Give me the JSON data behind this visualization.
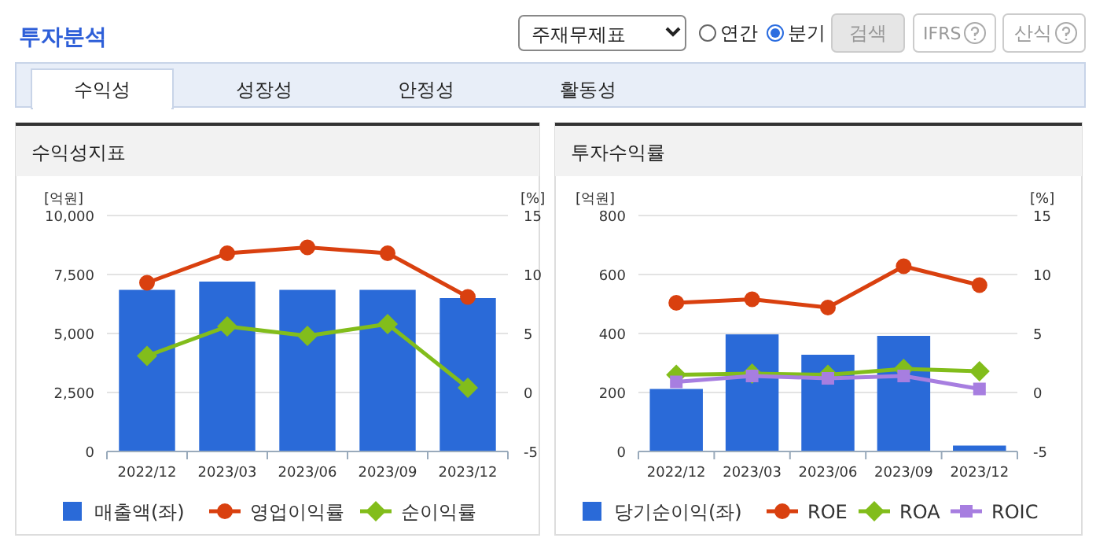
{
  "chart_data": [
    {
      "type": "other",
      "title": "투자분석",
      "annotations": [
        "주재무제표",
        "연간",
        "분기",
        "검색",
        "IFRS",
        "산식",
        "수익성",
        "성장성",
        "안정성",
        "활동성"
      ]
    },
    {
      "type": "bar",
      "title": "수익성지표",
      "categories": [
        "2022/12",
        "2023/03",
        "2023/06",
        "2023/09",
        "2023/12"
      ],
      "ylabel": "[억원]",
      "y2label": "[%]",
      "ylim": [
        0,
        10000
      ],
      "yticks": [
        0,
        {
          "value": 2500,
          "label": "2,500"
        },
        {
          "value": 5000,
          "label": "5,000"
        },
        {
          "value": 7500,
          "label": "7,500"
        },
        {
          "value": 10000,
          "label": "10,000"
        }
      ],
      "y2lim": [
        -5,
        15
      ],
      "y2ticks": [
        -5,
        0,
        5,
        10,
        15
      ],
      "grid": "y",
      "legend": "bottom",
      "series": [
        {
          "name": "매출액(좌)",
          "type": "bar",
          "color": "#2a6ad8",
          "values": [
            6850,
            7200,
            6850,
            6850,
            6500
          ]
        },
        {
          "name": "영업이익률",
          "type": "line",
          "axis": "y2",
          "marker": "circle",
          "color": "#d9400f",
          "values": [
            9.3,
            11.8,
            12.3,
            11.8,
            8.1
          ]
        },
        {
          "name": "순이익률",
          "type": "line",
          "axis": "y2",
          "marker": "diamond",
          "color": "#82bd1b",
          "values": [
            3.1,
            5.6,
            4.8,
            5.8,
            0.4
          ]
        }
      ]
    },
    {
      "type": "bar",
      "title": "투자수익률",
      "categories": [
        "2022/12",
        "2023/03",
        "2023/06",
        "2023/09",
        "2023/12"
      ],
      "ylabel": "[억원]",
      "y2label": "[%]",
      "ylim": [
        0,
        800
      ],
      "yticks": [
        0,
        200,
        400,
        600,
        800
      ],
      "y2lim": [
        -5,
        15
      ],
      "y2ticks": [
        -5,
        0,
        5,
        10,
        15
      ],
      "grid": "y",
      "legend": "bottom",
      "series": [
        {
          "name": "당기순이익(좌)",
          "type": "bar",
          "color": "#2a6ad8",
          "values": [
            212,
            397,
            328,
            392,
            20
          ]
        },
        {
          "name": "ROE",
          "type": "line",
          "axis": "y2",
          "marker": "circle",
          "color": "#d9400f",
          "values": [
            7.6,
            7.9,
            7.2,
            10.7,
            9.1
          ]
        },
        {
          "name": "ROA",
          "type": "line",
          "axis": "y2",
          "marker": "diamond",
          "color": "#82bd1b",
          "values": [
            1.5,
            1.6,
            1.5,
            2.0,
            1.8
          ]
        },
        {
          "name": "ROIC",
          "type": "line",
          "axis": "y2",
          "marker": "square",
          "color": "#a77ee0",
          "values": [
            0.9,
            1.4,
            1.2,
            1.4,
            0.3
          ]
        }
      ]
    }
  ]
}
